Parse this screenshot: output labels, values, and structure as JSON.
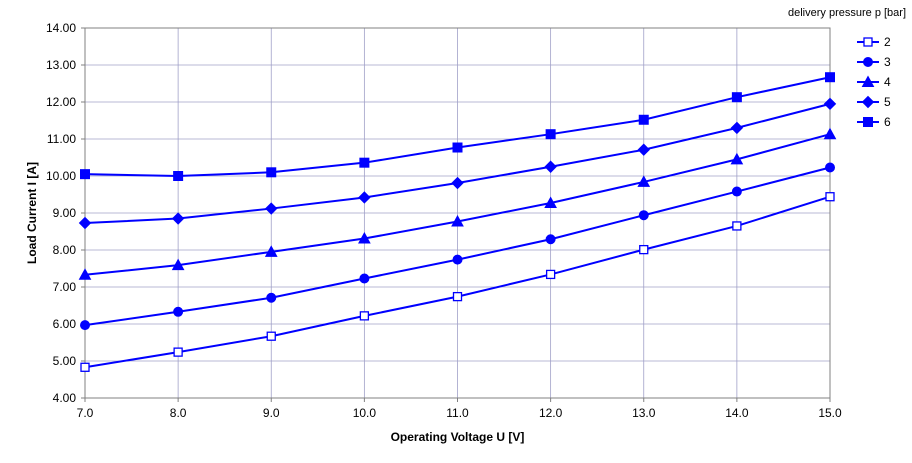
{
  "chart_data": {
    "type": "line",
    "title": "",
    "xlabel": "Operating Voltage U [V]",
    "ylabel": "Load Current I [A]",
    "xlim": [
      7,
      15
    ],
    "ylim": [
      4,
      14
    ],
    "x_ticks": [
      "7.0",
      "8.0",
      "9.0",
      "10.0",
      "11.0",
      "12.0",
      "13.0",
      "14.0",
      "15.0"
    ],
    "y_ticks": [
      "4.00",
      "5.00",
      "6.00",
      "7.00",
      "8.00",
      "9.00",
      "10.00",
      "11.00",
      "12.00",
      "13.00",
      "14.00"
    ],
    "grid": true,
    "legend_title": "delivery pressure p [bar]",
    "legend_position": "top-right",
    "line_color": "#0000ff",
    "x": [
      7,
      8,
      9,
      10,
      11,
      12,
      13,
      14,
      15
    ],
    "series": [
      {
        "name": "2",
        "marker": "square-open",
        "values": [
          4.83,
          5.24,
          5.67,
          6.22,
          6.74,
          7.34,
          8.01,
          8.65,
          9.44
        ]
      },
      {
        "name": "3",
        "marker": "circle",
        "values": [
          5.97,
          6.33,
          6.71,
          7.23,
          7.74,
          8.29,
          8.94,
          9.58,
          10.23
        ]
      },
      {
        "name": "4",
        "marker": "triangle",
        "values": [
          7.33,
          7.59,
          7.95,
          8.31,
          8.77,
          9.27,
          9.84,
          10.45,
          11.13
        ]
      },
      {
        "name": "5",
        "marker": "diamond",
        "values": [
          8.73,
          8.85,
          9.12,
          9.42,
          9.81,
          10.25,
          10.71,
          11.3,
          11.95
        ]
      },
      {
        "name": "6",
        "marker": "square",
        "values": [
          10.05,
          10.0,
          10.1,
          10.36,
          10.77,
          11.13,
          11.52,
          12.13,
          12.67
        ]
      }
    ]
  }
}
